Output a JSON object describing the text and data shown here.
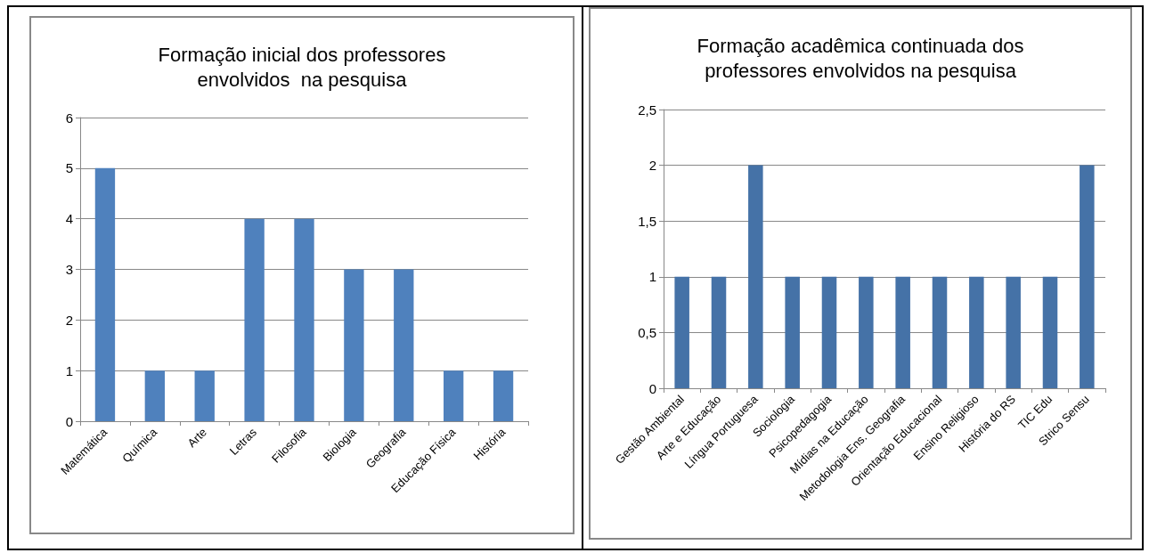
{
  "chart_data": [
    {
      "type": "bar",
      "title": "Formação inicial dos professores\nenvolvidos  na pesquisa",
      "categories": [
        "Matemática",
        "Química",
        "Arte",
        "Letras",
        "Filosofia",
        "Biologia",
        "Geografia",
        "Educação Física",
        "História"
      ],
      "values": [
        5,
        1,
        1,
        4,
        4,
        3,
        3,
        1,
        1
      ],
      "color": "#4f81bd",
      "ylim": [
        0,
        6
      ],
      "yticks": [
        0,
        1,
        2,
        3,
        4,
        5,
        6
      ],
      "grid": "y"
    },
    {
      "type": "bar",
      "title": "Formação acadêmica continuada dos\nprofessores envolvidos na pesquisa",
      "categories": [
        "Gestão Ambiental",
        "Arte e Educação",
        "Língua Portuguesa",
        "Sociologia",
        "Psicopedagogia",
        "Mídias na Educação",
        "Metodologia Ens. Geografia",
        "Orientação Educacional",
        "Ensino Religioso",
        "História do RS",
        "TIC Edu",
        "Strico Sensu"
      ],
      "values": [
        1,
        1,
        2,
        1,
        1,
        1,
        1,
        1,
        1,
        1,
        1,
        2
      ],
      "color": "#4572a7",
      "ylim": [
        0,
        2.5
      ],
      "yticks": [
        0,
        {
          "value": 0.5,
          "label": "0,5"
        },
        1,
        {
          "value": 1.5,
          "label": "1,5"
        },
        2,
        {
          "value": 2.5,
          "label": "2,5"
        }
      ],
      "grid": "y"
    }
  ]
}
